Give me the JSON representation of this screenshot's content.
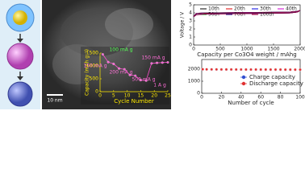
{
  "figure": {
    "scale_bar": "10 nm"
  },
  "chart_data": [
    {
      "type": "line",
      "title": "",
      "xlabel": "Cycle Number",
      "ylabel": "Capacity (mAh g⁻¹)",
      "xlim": [
        0,
        25
      ],
      "xticks": [
        0,
        5,
        10,
        15,
        20,
        25
      ],
      "ylim": [
        0,
        1500
      ],
      "yticks": [
        0,
        500,
        1000,
        1500
      ],
      "annotations": [
        "100 mA g",
        "150 mA g",
        "200 mA g",
        "500 mA g",
        "1 A g",
        "150 mA g"
      ],
      "series": [
        {
          "name": "Capacity",
          "color": "#ff4fd0",
          "x": [
            1,
            3,
            5,
            7,
            9,
            11,
            13,
            15,
            17,
            19,
            21,
            23,
            25
          ],
          "values": [
            1450,
            1150,
            1080,
            900,
            870,
            650,
            620,
            450,
            430,
            1100,
            1120,
            1130,
            1140
          ]
        }
      ]
    },
    {
      "type": "line",
      "xlabel": "Capacity per Co3O4 weight / mAhg",
      "ylabel": "Voltage / V",
      "xlim": [
        0,
        2000
      ],
      "xticks": [
        0,
        500,
        1000,
        1500,
        2000
      ],
      "ylim": [
        0,
        5
      ],
      "yticks": [
        0,
        1,
        2,
        3,
        4,
        5
      ],
      "x": [
        0,
        50,
        200,
        1000,
        1800,
        1950,
        2000,
        1950,
        1800,
        1000,
        200,
        50,
        0
      ],
      "series": [
        {
          "name": "10th",
          "color": "#000000",
          "values": [
            3.5,
            3.8,
            3.9,
            3.95,
            4.0,
            4.1,
            4.3,
            4.2,
            4.1,
            4.05,
            4.0,
            3.95,
            3.6
          ]
        },
        {
          "name": "20th",
          "color": "#e00000",
          "values": [
            3.5,
            3.8,
            3.88,
            3.94,
            4.0,
            4.1,
            4.3,
            4.2,
            4.1,
            4.05,
            4.0,
            3.95,
            3.6
          ]
        },
        {
          "name": "30th",
          "color": "#0000e0",
          "values": [
            3.5,
            3.78,
            3.87,
            3.93,
            3.99,
            4.1,
            4.3,
            4.2,
            4.1,
            4.04,
            4.0,
            3.94,
            3.6
          ]
        },
        {
          "name": "40th",
          "color": "#d000d0",
          "values": [
            3.5,
            3.78,
            3.86,
            3.92,
            3.98,
            4.1,
            4.3,
            4.2,
            4.1,
            4.04,
            3.99,
            3.94,
            3.6
          ]
        },
        {
          "name": "50th",
          "color": "#00a000",
          "values": [
            3.5,
            3.77,
            3.86,
            3.92,
            3.98,
            4.1,
            4.3,
            4.2,
            4.1,
            4.03,
            3.99,
            3.93,
            3.6
          ]
        },
        {
          "name": "70th",
          "color": "#000080",
          "values": [
            3.5,
            3.76,
            3.85,
            3.91,
            3.97,
            4.1,
            4.3,
            4.2,
            4.1,
            4.03,
            3.98,
            3.93,
            3.6
          ]
        },
        {
          "name": "100th",
          "color": "#a00040",
          "values": [
            3.5,
            3.75,
            3.84,
            3.9,
            3.96,
            4.1,
            4.3,
            4.2,
            4.1,
            4.02,
            3.98,
            3.92,
            3.6
          ]
        }
      ]
    },
    {
      "type": "scatter",
      "xlabel": "Number of cycle",
      "xlim": [
        0,
        100
      ],
      "xticks": [
        0,
        20,
        40,
        60,
        80,
        100
      ],
      "ylim": [
        0,
        2800
      ],
      "yticks": [
        0,
        1000,
        2000
      ],
      "x": [
        1,
        5,
        10,
        15,
        20,
        25,
        30,
        35,
        40,
        45,
        50,
        55,
        60,
        65,
        70,
        75,
        80,
        85,
        90,
        95,
        100
      ],
      "series": [
        {
          "name": "Charge capacity",
          "color": "#3050d0",
          "values": [
            1980,
            1980,
            1975,
            1975,
            1970,
            1970,
            1970,
            1968,
            1968,
            1965,
            1965,
            1965,
            1962,
            1962,
            1960,
            1960,
            1960,
            1958,
            1958,
            1955,
            1955
          ]
        },
        {
          "name": "Discharge capacity",
          "color": "#e03030",
          "values": [
            1990,
            1985,
            1980,
            1980,
            1975,
            1975,
            1975,
            1972,
            1972,
            1970,
            1970,
            1970,
            1968,
            1968,
            1965,
            1965,
            1965,
            1962,
            1962,
            1960,
            1960
          ]
        }
      ]
    }
  ]
}
